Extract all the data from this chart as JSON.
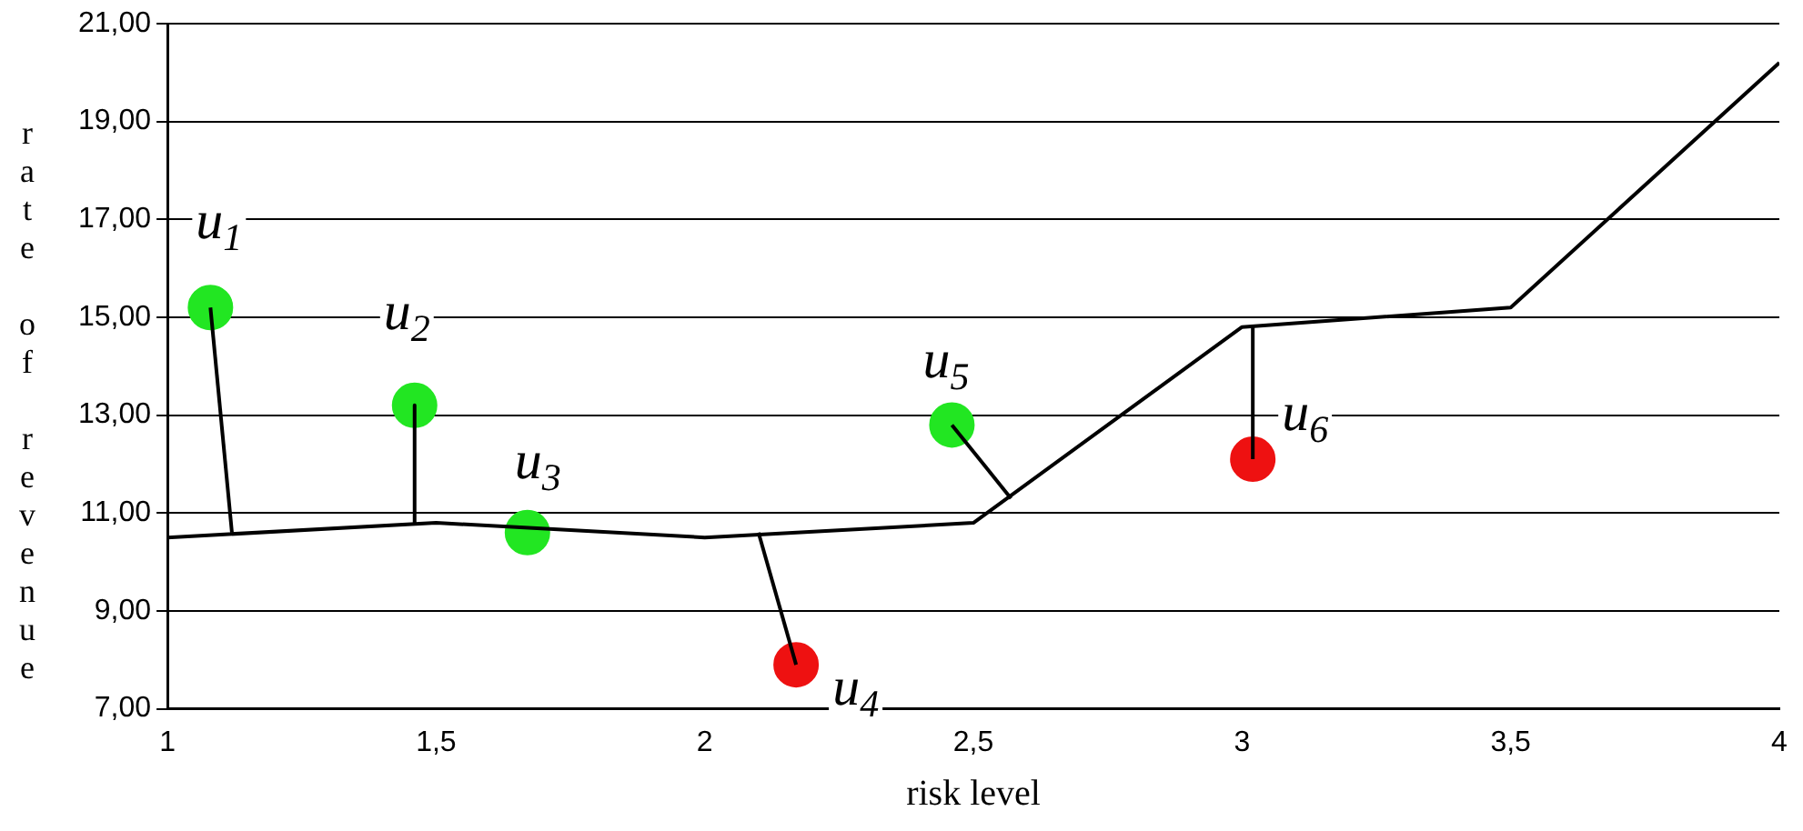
{
  "chart_data": {
    "type": "line",
    "xlabel": "risk level",
    "ylabel": "rate of revenue",
    "xlim": [
      1,
      4
    ],
    "xticks": [
      {
        "value": 1,
        "label": "1"
      },
      {
        "value": 1.5,
        "label": "1,5"
      },
      {
        "value": 2,
        "label": "2"
      },
      {
        "value": 2.5,
        "label": "2,5"
      },
      {
        "value": 3,
        "label": "3"
      },
      {
        "value": 3.5,
        "label": "3,5"
      },
      {
        "value": 4,
        "label": "4"
      }
    ],
    "ylim": [
      7,
      21
    ],
    "yticks": [
      {
        "value": 7,
        "label": "7,00"
      },
      {
        "value": 9,
        "label": "9,00"
      },
      {
        "value": 11,
        "label": "11,00"
      },
      {
        "value": 13,
        "label": "13,00"
      },
      {
        "value": 15,
        "label": "15,00"
      },
      {
        "value": 17,
        "label": "17,00"
      },
      {
        "value": 19,
        "label": "19,00"
      },
      {
        "value": 21,
        "label": "21,00"
      }
    ],
    "grid": "y",
    "legend": false,
    "marker": "none",
    "series": [
      {
        "color": "#000000",
        "x": [
          1,
          1.5,
          2,
          2.5,
          3,
          3.5,
          4
        ],
        "values": [
          10.5,
          10.8,
          10.5,
          10.8,
          14.8,
          15.2,
          20.2
        ]
      },
      {
        "type": "line",
        "color": "#000000",
        "x": [
          1.08,
          1.12
        ],
        "values": [
          15.2,
          10.6
        ]
      },
      {
        "type": "line",
        "color": "#000000",
        "x": [
          1.46,
          1.46
        ],
        "values": [
          13.2,
          10.8
        ]
      },
      {
        "type": "line",
        "color": "#000000",
        "x": [
          2.17,
          2.1
        ],
        "values": [
          7.9,
          10.6
        ]
      },
      {
        "type": "line",
        "color": "#000000",
        "x": [
          2.46,
          2.57
        ],
        "values": [
          12.8,
          11.3
        ]
      },
      {
        "type": "line",
        "color": "#000000",
        "x": [
          3.02,
          3.02
        ],
        "values": [
          12.1,
          14.8
        ]
      },
      {
        "type": "scatter",
        "marker": "circle",
        "x": [
          1.08,
          1.46,
          1.67,
          2.17,
          2.46,
          3.02
        ],
        "values": [
          15.2,
          13.2,
          10.6,
          7.9,
          12.8,
          12.1
        ],
        "colors": [
          "#22e622",
          "#22e622",
          "#22e622",
          "#ee1111",
          "#22e622",
          "#ee1111"
        ]
      }
    ],
    "annotations": [
      "u$_{1}$",
      "u$_{2}$",
      "u$_{3}$",
      "u$_{4}$",
      "u$_{5}$",
      "u$_{6}$"
    ]
  }
}
